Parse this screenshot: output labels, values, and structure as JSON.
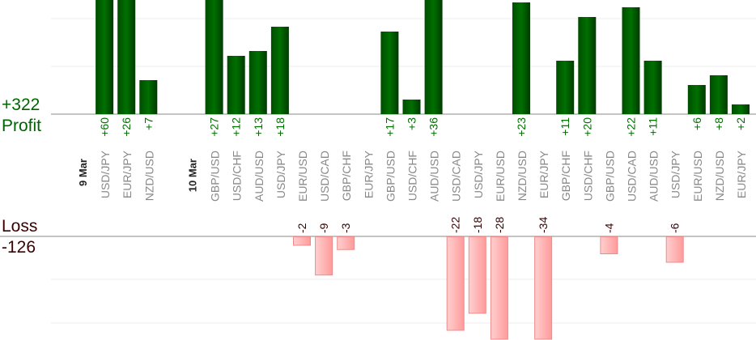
{
  "summary": {
    "profit_total": "+322",
    "profit_label": "Profit",
    "loss_label": "Loss",
    "loss_total": "-126"
  },
  "colors": {
    "profit": "#006400",
    "loss": "#ff9999",
    "pair_label": "#888888"
  },
  "chart_data": {
    "type": "bar",
    "title": "",
    "groups": [
      {
        "date": "9 Mar",
        "trades": [
          {
            "pair": "USD/JPY",
            "value": 60,
            "label": "+60"
          },
          {
            "pair": "EUR/JPY",
            "value": 26,
            "label": "+26"
          },
          {
            "pair": "NZD/USD",
            "value": 7,
            "label": "+7"
          }
        ]
      },
      {
        "date": "10 Mar",
        "trades": [
          {
            "pair": "GBP/USD",
            "value": 27,
            "label": "+27"
          },
          {
            "pair": "USD/CHF",
            "value": 12,
            "label": "+12"
          },
          {
            "pair": "AUD/USD",
            "value": 13,
            "label": "+13"
          },
          {
            "pair": "USD/JPY",
            "value": 18,
            "label": "+18"
          },
          {
            "pair": "EUR/USD",
            "value": -2,
            "label": "-2"
          },
          {
            "pair": "USD/CAD",
            "value": -9,
            "label": "-9"
          },
          {
            "pair": "GBP/CHF",
            "value": -3,
            "label": "-3"
          },
          {
            "pair": "EUR/JPY",
            "value": 0,
            "label": ""
          },
          {
            "pair": "GBP/USD",
            "value": 17,
            "label": "+17"
          },
          {
            "pair": "USD/CHF",
            "value": 3,
            "label": "+3"
          },
          {
            "pair": "AUD/USD",
            "value": 36,
            "label": "+36"
          },
          {
            "pair": "USD/CAD",
            "value": -22,
            "label": "-22"
          },
          {
            "pair": "USD/JPY",
            "value": -18,
            "label": "-18"
          },
          {
            "pair": "EUR/USD",
            "value": -28,
            "label": "-28"
          },
          {
            "pair": "NZD/USD",
            "value": 23,
            "label": "+23"
          },
          {
            "pair": "EUR/JPY",
            "value": -34,
            "label": "-34"
          },
          {
            "pair": "GBP/CHF",
            "value": 11,
            "label": "+11"
          },
          {
            "pair": "USD/CHF",
            "value": 20,
            "label": "+20"
          },
          {
            "pair": "GBP/USD",
            "value": -4,
            "label": "-4"
          },
          {
            "pair": "USD/CAD",
            "value": 22,
            "label": "+22"
          },
          {
            "pair": "AUD/USD",
            "value": 11,
            "label": "+11"
          },
          {
            "pair": "USD/JPY",
            "value": -6,
            "label": "-6"
          },
          {
            "pair": "EUR/USD",
            "value": 6,
            "label": "+6"
          },
          {
            "pair": "NZD/USD",
            "value": 8,
            "label": "+8"
          },
          {
            "pair": "EUR/JPY",
            "value": 2,
            "label": "+2"
          }
        ]
      }
    ],
    "grid": true
  }
}
